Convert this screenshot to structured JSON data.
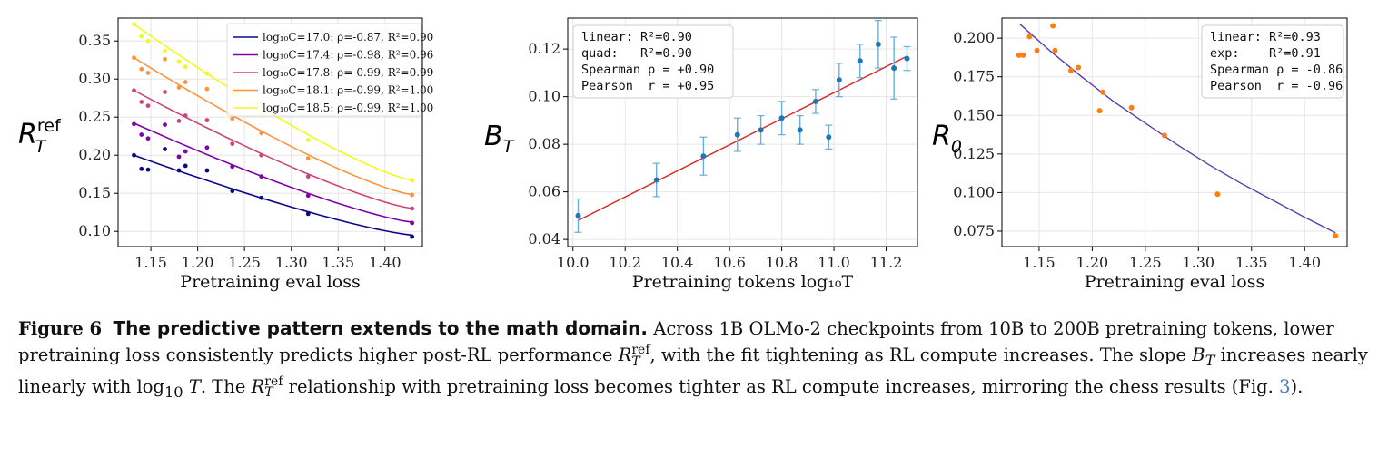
{
  "chart_data": [
    {
      "type": "scatter",
      "title": "",
      "xlabel": "Pretraining eval loss",
      "ylabel_base": "R",
      "ylabel_sub": "T",
      "ylabel_sup": "ref",
      "xlim": [
        1.115,
        1.44
      ],
      "ylim": [
        0.08,
        0.38
      ],
      "xticks": [
        "1.15",
        "1.20",
        "1.25",
        "1.30",
        "1.35",
        "1.40"
      ],
      "yticks": [
        "0.10",
        "0.15",
        "0.20",
        "0.25",
        "0.30",
        "0.35"
      ],
      "grid": true,
      "legend_position": "top-right",
      "x": [
        1.132,
        1.14,
        1.147,
        1.165,
        1.18,
        1.187,
        1.21,
        1.237,
        1.268,
        1.318,
        1.429
      ],
      "series": [
        {
          "name": "log₁₀C=17.0: ρ=-0.87, R²=0.90",
          "color": "#0d0887",
          "points": [
            0.2,
            0.182,
            0.181,
            0.208,
            0.18,
            0.186,
            0.18,
            0.153,
            0.144,
            0.123,
            0.093
          ],
          "fit": [
            1.132,
            0.2,
            1.429,
            0.095
          ]
        },
        {
          "name": "log₁₀C=17.4: ρ=-0.98, R²=0.96",
          "color": "#7e03a8",
          "points": [
            0.241,
            0.227,
            0.222,
            0.24,
            0.198,
            0.205,
            0.21,
            0.185,
            0.172,
            0.147,
            0.111
          ],
          "fit": [
            1.132,
            0.242,
            1.429,
            0.112
          ]
        },
        {
          "name": "log₁₀C=17.8: ρ=-0.99, R²=0.99",
          "color": "#cc4778",
          "points": [
            0.285,
            0.27,
            0.265,
            0.283,
            0.245,
            0.252,
            0.246,
            0.215,
            0.2,
            0.172,
            0.13
          ],
          "fit": [
            1.132,
            0.285,
            1.429,
            0.13
          ]
        },
        {
          "name": "log₁₀C=18.1: ρ=-0.99, R²=1.00",
          "color": "#f89540",
          "points": [
            0.328,
            0.313,
            0.308,
            0.326,
            0.289,
            0.296,
            0.287,
            0.248,
            0.229,
            0.196,
            0.148
          ],
          "fit": [
            1.132,
            0.328,
            1.429,
            0.148
          ]
        },
        {
          "name": "log₁₀C=18.5: ρ=-0.99, R²=1.00",
          "color": "#f0f921",
          "points": [
            0.372,
            0.356,
            0.35,
            0.337,
            0.323,
            0.316,
            0.307,
            0.28,
            0.255,
            0.22,
            0.167
          ],
          "fit": [
            1.132,
            0.372,
            1.429,
            0.167
          ]
        }
      ]
    },
    {
      "type": "scatter",
      "title": "",
      "xlabel": "Pretraining tokens  log₁₀T",
      "ylabel_base": "B",
      "ylabel_sub": "T",
      "xlim": [
        9.98,
        11.32
      ],
      "ylim": [
        0.037,
        0.133
      ],
      "xticks": [
        "10.0",
        "10.2",
        "10.4",
        "10.6",
        "10.8",
        "11.0",
        "11.2"
      ],
      "yticks": [
        "0.04",
        "0.06",
        "0.08",
        "0.10",
        "0.12"
      ],
      "grid": true,
      "stats": [
        "linear: R²=0.90",
        "quad:   R²=0.90",
        "Spearman ρ = +0.90",
        "Pearson  r = +0.95"
      ],
      "points": [
        {
          "x": 10.02,
          "y": 0.05,
          "err": 0.007
        },
        {
          "x": 10.32,
          "y": 0.065,
          "err": 0.007
        },
        {
          "x": 10.5,
          "y": 0.075,
          "err": 0.008
        },
        {
          "x": 10.63,
          "y": 0.084,
          "err": 0.007
        },
        {
          "x": 10.72,
          "y": 0.086,
          "err": 0.006
        },
        {
          "x": 10.8,
          "y": 0.091,
          "err": 0.007
        },
        {
          "x": 10.87,
          "y": 0.086,
          "err": 0.006
        },
        {
          "x": 10.93,
          "y": 0.098,
          "err": 0.005
        },
        {
          "x": 10.98,
          "y": 0.083,
          "err": 0.005
        },
        {
          "x": 11.02,
          "y": 0.107,
          "err": 0.007
        },
        {
          "x": 11.1,
          "y": 0.115,
          "err": 0.007
        },
        {
          "x": 11.17,
          "y": 0.122,
          "err": 0.01
        },
        {
          "x": 11.23,
          "y": 0.112,
          "err": 0.013
        },
        {
          "x": 11.28,
          "y": 0.116,
          "err": 0.005
        }
      ],
      "fit": [
        10.02,
        0.048,
        11.28,
        0.117
      ],
      "point_color": "#1f77b4",
      "err_color": "#6aaed6",
      "fit_color": "#d62728"
    },
    {
      "type": "scatter",
      "title": "",
      "xlabel": "Pretraining eval loss",
      "ylabel_base": "R",
      "ylabel_sub": "0",
      "xlim": [
        1.115,
        1.44
      ],
      "ylim": [
        0.065,
        0.213
      ],
      "xticks": [
        "1.15",
        "1.20",
        "1.25",
        "1.30",
        "1.35",
        "1.40"
      ],
      "yticks": [
        "0.075",
        "0.100",
        "0.125",
        "0.150",
        "0.175",
        "0.200"
      ],
      "grid": true,
      "stats": [
        "linear: R²=0.93",
        "exp:    R²=0.91",
        "Spearman ρ = -0.86",
        "Pearson  r = -0.96"
      ],
      "x": [
        1.131,
        1.135,
        1.141,
        1.148,
        1.163,
        1.165,
        1.18,
        1.187,
        1.207,
        1.21,
        1.237,
        1.268,
        1.318,
        1.429
      ],
      "y": [
        0.189,
        0.189,
        0.201,
        0.192,
        0.208,
        0.192,
        0.179,
        0.181,
        0.153,
        0.165,
        0.155,
        0.137,
        0.099,
        0.072
      ],
      "fit_x": [
        1.132,
        1.16,
        1.19,
        1.22,
        1.25,
        1.28,
        1.31,
        1.34,
        1.37,
        1.4,
        1.429
      ],
      "fit_y": [
        0.209,
        0.192,
        0.175,
        0.159,
        0.145,
        0.131,
        0.118,
        0.106,
        0.095,
        0.084,
        0.074
      ],
      "point_color": "#ff7f0e",
      "fit_color": "#5b3ea8"
    }
  ],
  "caption": {
    "label": "Figure 6",
    "title": "The predictive pattern extends to the math domain.",
    "text1": "Across 1B OLMo-2 checkpoints from 10B to 200B pretraining tokens, lower pretraining loss consistently predicts higher post-RL performance ",
    "sym1_base": "R",
    "sym1_sub": "T",
    "sym1_sup": "ref",
    "text2": ", with the fit tightening as RL compute increases. The slope ",
    "sym2_base": "B",
    "sym2_sub": "T",
    "text3": " increases nearly linearly with log",
    "sym3_sub": "10",
    "sym3_var": " T",
    "text4": ". The ",
    "text5": " relationship with pretraining loss becomes tighter as RL compute increases, mirroring the chess results (Fig. ",
    "ref": "3",
    "text6": ")."
  }
}
